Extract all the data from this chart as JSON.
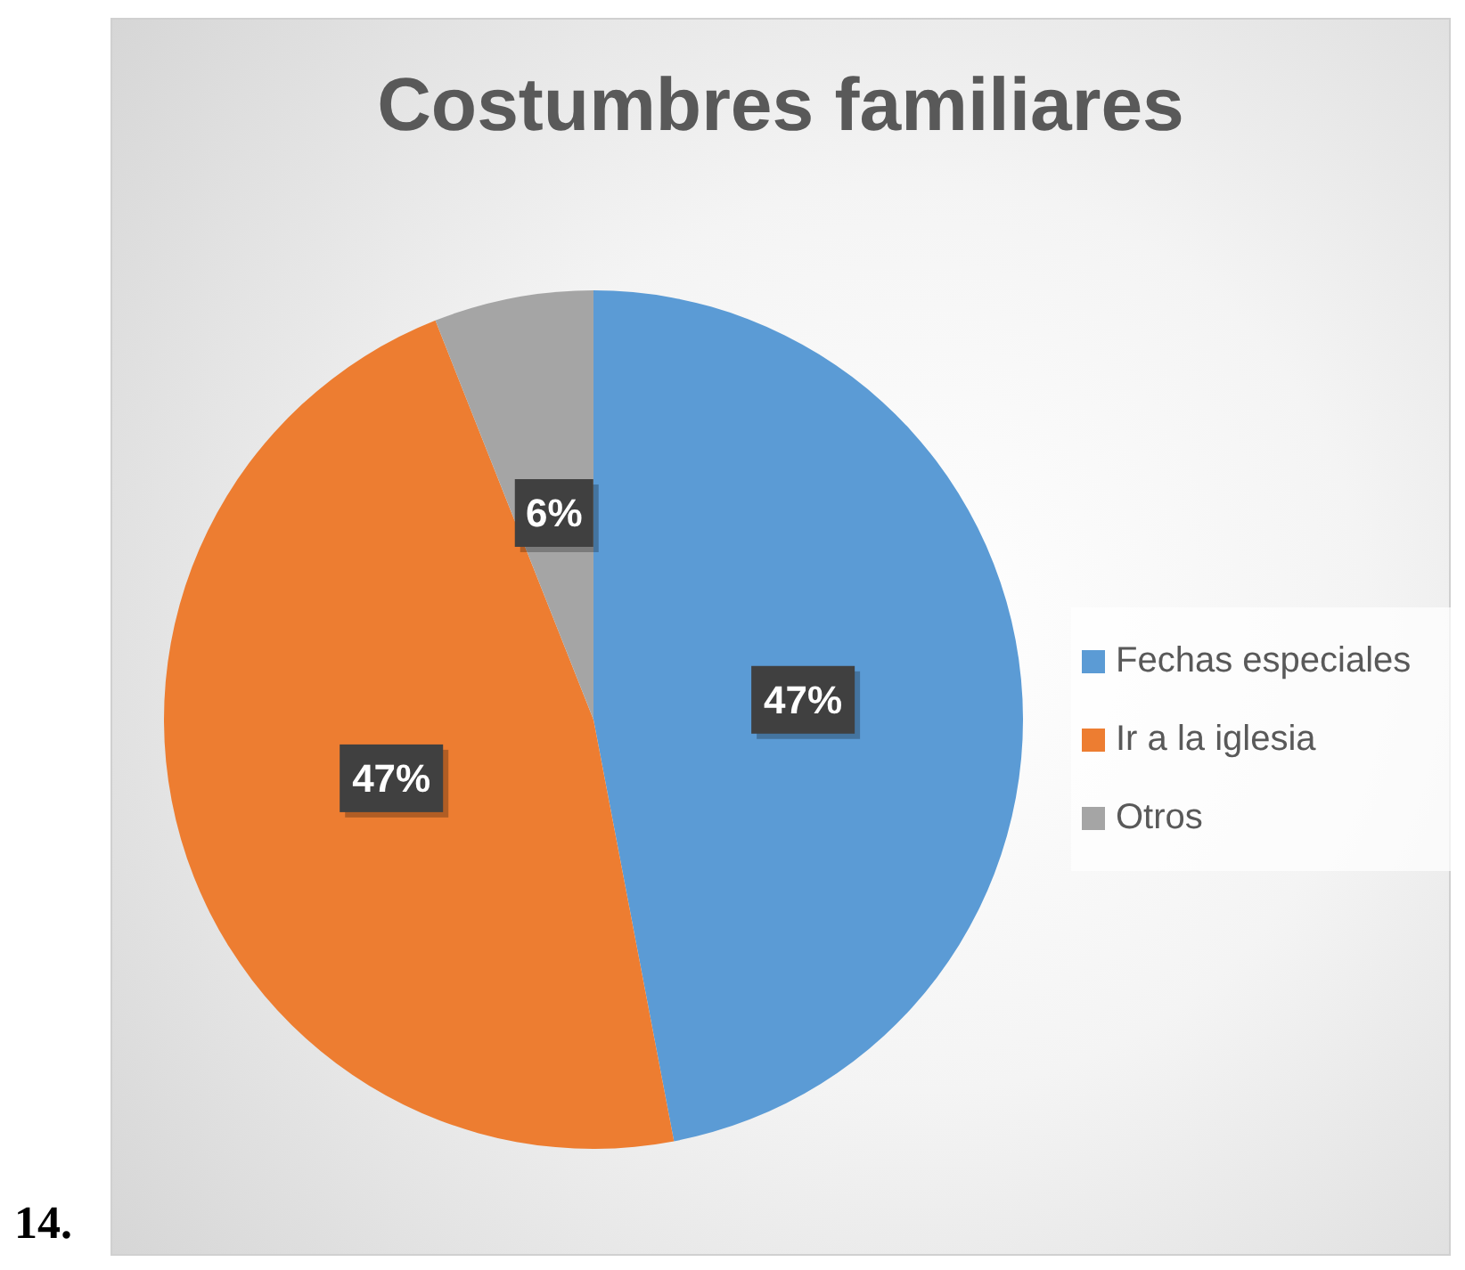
{
  "chart_data": {
    "type": "pie",
    "title": "Costumbres familiares",
    "categories": [
      "Fechas especiales",
      "Ir a la iglesia",
      "Otros"
    ],
    "values": [
      47,
      47,
      6
    ],
    "colors": [
      "#5b9bd5",
      "#ed7d31",
      "#a5a5a5"
    ],
    "value_labels": [
      "47%",
      "47%",
      "6%"
    ],
    "legend": "right",
    "annotations": [
      "14."
    ]
  }
}
